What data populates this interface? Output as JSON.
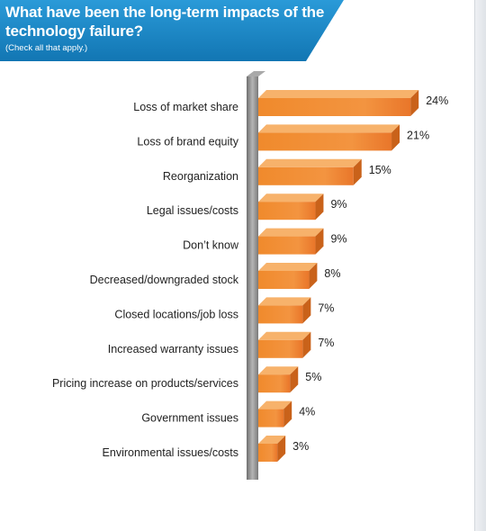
{
  "header": {
    "title": "What have been the long-term impacts of the technology failure?",
    "subtitle": "(Check all that apply.)"
  },
  "colors": {
    "header_blue": "#1f8fcf",
    "header_blue_dark": "#1276b3",
    "bar_front": "#f08a2c",
    "bar_top": "#f7b26b",
    "bar_side": "#c9621a",
    "axis_post": "#8c8c8c"
  },
  "chart_data": {
    "type": "bar",
    "orientation": "horizontal",
    "categories": [
      "Loss of market share",
      "Loss of brand equity",
      "Reorganization",
      "Legal issues/costs",
      "Don’t know",
      "Decreased/downgraded stock",
      "Closed locations/job loss",
      "Increased warranty issues",
      "Pricing increase on products/services",
      "Government issues",
      "Environmental issues/costs"
    ],
    "values": [
      24,
      21,
      15,
      9,
      9,
      8,
      7,
      7,
      5,
      4,
      3
    ],
    "value_labels": [
      "24%",
      "21%",
      "15%",
      "9%",
      "9%",
      "8%",
      "7%",
      "7%",
      "5%",
      "4%",
      "3%"
    ],
    "unit": "%",
    "xlim": [
      0,
      24
    ],
    "grid": false,
    "legend": "none"
  }
}
